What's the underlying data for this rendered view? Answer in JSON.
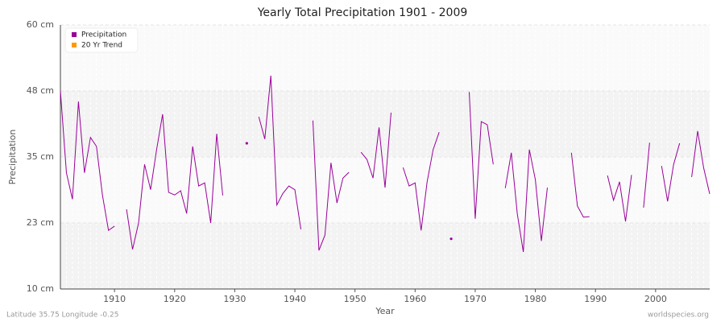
{
  "chart_data": {
    "type": "line",
    "title": "Yearly Total Precipitation 1901 - 2009",
    "x_label": "Year",
    "y_label": "Precipitation",
    "x": [
      1901,
      1902,
      1903,
      1904,
      1905,
      1906,
      1907,
      1908,
      1909,
      1910,
      1911,
      1912,
      1913,
      1914,
      1915,
      1916,
      1917,
      1918,
      1919,
      1920,
      1921,
      1922,
      1923,
      1924,
      1925,
      1926,
      1927,
      1928,
      1929,
      1930,
      1931,
      1932,
      1933,
      1934,
      1935,
      1936,
      1937,
      1938,
      1939,
      1940,
      1941,
      1942,
      1943,
      1944,
      1945,
      1946,
      1947,
      1948,
      1949,
      1950,
      1951,
      1952,
      1953,
      1954,
      1955,
      1956,
      1957,
      1958,
      1959,
      1960,
      1961,
      1962,
      1963,
      1964,
      1965,
      1966,
      1967,
      1968,
      1969,
      1970,
      1971,
      1972,
      1973,
      1974,
      1975,
      1976,
      1977,
      1978,
      1979,
      1980,
      1981,
      1982,
      1983,
      1984,
      1985,
      1986,
      1987,
      1988,
      1989,
      1990,
      1991,
      1992,
      1993,
      1994,
      1995,
      1996,
      1997,
      1998,
      1999,
      2000,
      2001,
      2002,
      2003,
      2004,
      2005,
      2006,
      2007,
      2008,
      2009
    ],
    "series": [
      {
        "name": "Precipitation",
        "color": "#990099",
        "values": [
          47.5,
          32,
          27,
          45.5,
          32,
          38.7,
          37,
          27.7,
          21.1,
          21.9,
          null,
          25.1,
          17.5,
          22.5,
          33.6,
          28.8,
          36.4,
          43.1,
          28.3,
          27.8,
          28.6,
          24.3,
          37,
          29.5,
          30.1,
          22.5,
          39.4,
          27.7,
          null,
          null,
          null,
          37.6,
          null,
          42.6,
          38.4,
          50.4,
          25.9,
          28.1,
          29.5,
          28.8,
          21.3,
          null,
          41.9,
          17.3,
          20.2,
          33.9,
          26.3,
          31,
          32.1,
          null,
          35.9,
          34.5,
          31,
          40.6,
          29.2,
          43.4,
          null,
          33,
          29.5,
          30.1,
          21.1,
          30.3,
          36.4,
          39.7,
          null,
          19.5,
          null,
          null,
          47.3,
          23.3,
          41.7,
          41.1,
          33.6,
          null,
          29.1,
          35.8,
          24.2,
          17,
          36.4,
          30.7,
          19.1,
          29.2,
          null,
          null,
          null,
          35.8,
          25.7,
          23.6,
          23.7,
          null,
          null,
          31.5,
          26.8,
          30.3,
          22.8,
          31.6,
          null,
          25.4,
          37.7,
          null,
          33.3,
          26.6,
          33.6,
          37.6,
          null,
          31.2,
          39.9,
          32.9,
          28
        ]
      },
      {
        "name": "20 Yr Trend",
        "color": "#ff9900",
        "values": [
          null,
          null,
          null,
          null,
          null,
          null,
          null,
          null,
          null,
          null,
          null,
          null,
          null,
          null,
          null,
          null,
          null,
          null,
          null,
          null,
          null,
          null,
          null,
          null,
          null,
          null,
          null,
          null,
          null,
          null,
          null,
          null,
          null,
          null,
          null,
          null,
          null,
          null,
          null,
          null,
          null,
          null,
          null,
          null,
          null,
          null,
          null,
          null,
          null,
          null,
          null,
          null,
          null,
          null,
          null,
          null,
          null,
          null,
          null,
          null,
          null,
          null,
          null,
          null,
          null,
          null,
          null,
          null,
          null,
          null,
          null,
          null,
          null,
          null,
          null,
          null,
          null,
          null,
          null,
          null,
          null,
          null,
          null,
          null,
          null,
          null,
          null,
          null,
          null,
          null,
          null,
          null,
          null,
          null,
          null,
          null,
          null,
          null,
          null,
          null,
          null,
          null,
          null,
          null,
          null,
          null,
          null,
          null,
          null
        ]
      }
    ],
    "xlim": [
      1901,
      2009
    ],
    "ylim": [
      10,
      60
    ],
    "xticks": [
      1910,
      1920,
      1930,
      1940,
      1950,
      1960,
      1970,
      1980,
      1990,
      2000
    ],
    "yticks": [
      {
        "value": 10,
        "label": "10 cm"
      },
      {
        "value": 22.5,
        "label": "23 cm"
      },
      {
        "value": 35,
        "label": "35 cm"
      },
      {
        "value": 47.5,
        "label": "48 cm"
      },
      {
        "value": 60,
        "label": "60 cm"
      }
    ],
    "grid": true,
    "legend": "upper-left",
    "footer_left": "Latitude 35.75 Longitude -0.25",
    "footer_right": "worldspecies.org"
  }
}
